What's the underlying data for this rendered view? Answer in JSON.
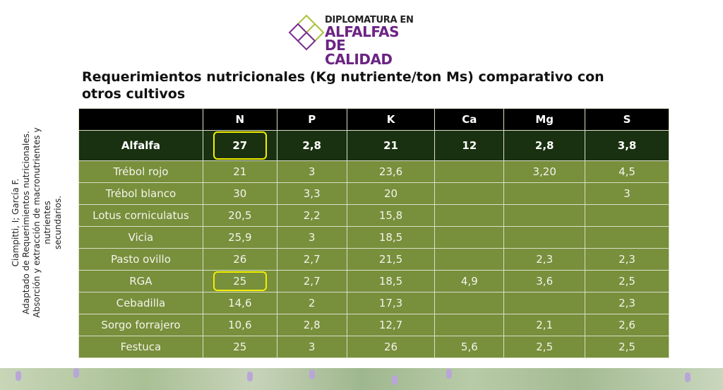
{
  "logo": {
    "line1": "DIPLOMATURA EN",
    "line2": "ALFALFAS",
    "line3": "DE CALIDAD"
  },
  "title": "Requerimientos nutricionales (Kg nutriente/ton Ms) comparativo con otros cultivos",
  "source": {
    "line1": "Ciampitti, I; García F.",
    "line2": "Adaptado de Requerimientos nutricionales.",
    "line3": "Absorción y extracción de macronutrientes y nutrientes",
    "line4": "secundarios."
  },
  "table": {
    "headers": [
      "",
      "N",
      "P",
      "K",
      "Ca",
      "Mg",
      "S"
    ],
    "highlight": {
      "crop": "Alfalfa",
      "cells": [
        "27",
        "2,8",
        "21",
        "12",
        "2,8",
        "3,8"
      ]
    },
    "rows": [
      {
        "crop": "Trébol rojo",
        "cells": [
          "21",
          "3",
          "23,6",
          "",
          "3,20",
          "4,5"
        ]
      },
      {
        "crop": "Trébol blanco",
        "cells": [
          "30",
          "3,3",
          "20",
          "",
          "",
          "3"
        ]
      },
      {
        "crop": "Lotus corniculatus",
        "cells": [
          "20,5",
          "2,2",
          "15,8",
          "",
          "",
          ""
        ]
      },
      {
        "crop": "Vicia",
        "cells": [
          "25,9",
          "3",
          "18,5",
          "",
          "",
          ""
        ]
      },
      {
        "crop": "Pasto ovillo",
        "cells": [
          "26",
          "2,7",
          "21,5",
          "",
          "2,3",
          "2,3"
        ]
      },
      {
        "crop": "RGA",
        "cells": [
          "25",
          "2,7",
          "18,5",
          "4,9",
          "3,6",
          "2,5"
        ]
      },
      {
        "crop": "Cebadilla",
        "cells": [
          "14,6",
          "2",
          "17,3",
          "",
          "",
          "2,3"
        ]
      },
      {
        "crop": "Sorgo forrajero",
        "cells": [
          "10,6",
          "2,8",
          "12,7",
          "",
          "2,1",
          "2,6"
        ]
      },
      {
        "crop": "Festuca",
        "cells": [
          "25",
          "3",
          "26",
          "5,6",
          "2,5",
          "2,5"
        ]
      }
    ]
  },
  "colors": {
    "header": "#000000",
    "highlight_row": "#1a3111",
    "row": "#788f3c",
    "box": "#f5ef00",
    "brand": "#6b2483"
  }
}
